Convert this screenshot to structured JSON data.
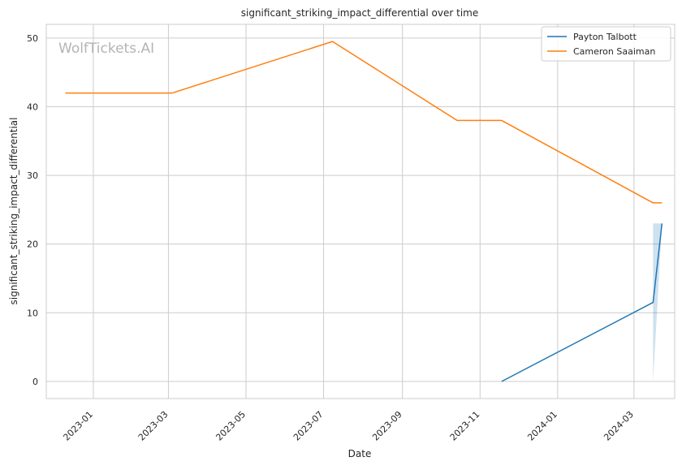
{
  "watermark": "WolfTickets.AI",
  "colors": {
    "payton": "#1f77b4",
    "cameron": "#ff7f0e",
    "grid": "#cccccc",
    "band": "#1f77b4"
  },
  "chart_data": {
    "type": "line",
    "title": "significant_striking_impact_differential over time",
    "xlabel": "Date",
    "ylabel": "significant_striking_impact_differential",
    "x_ticks": [
      "2023-01",
      "2023-03",
      "2023-05",
      "2023-07",
      "2023-09",
      "2023-11",
      "2024-01",
      "2024-03"
    ],
    "y_ticks": [
      0,
      10,
      20,
      30,
      40,
      50
    ],
    "xlim": [
      "2022-11-25",
      "2024-04-02"
    ],
    "ylim": [
      -2.5,
      52
    ],
    "grid": true,
    "legend_position": "top-right",
    "series": [
      {
        "name": "Payton Talbott",
        "points": [
          [
            "2023-11-18",
            0
          ],
          [
            "2024-03-16",
            11.5
          ],
          [
            "2024-03-23",
            23
          ]
        ],
        "band": [
          [
            "2024-03-16",
            0,
            23
          ],
          [
            "2024-03-23",
            23,
            23
          ]
        ]
      },
      {
        "name": "Cameron Saaiman",
        "points": [
          [
            "2022-12-10",
            42
          ],
          [
            "2023-03-04",
            42
          ],
          [
            "2023-07-08",
            49.5
          ],
          [
            "2023-10-14",
            38
          ],
          [
            "2023-11-18",
            38
          ],
          [
            "2024-03-16",
            26
          ],
          [
            "2024-03-23",
            26
          ]
        ]
      }
    ]
  }
}
